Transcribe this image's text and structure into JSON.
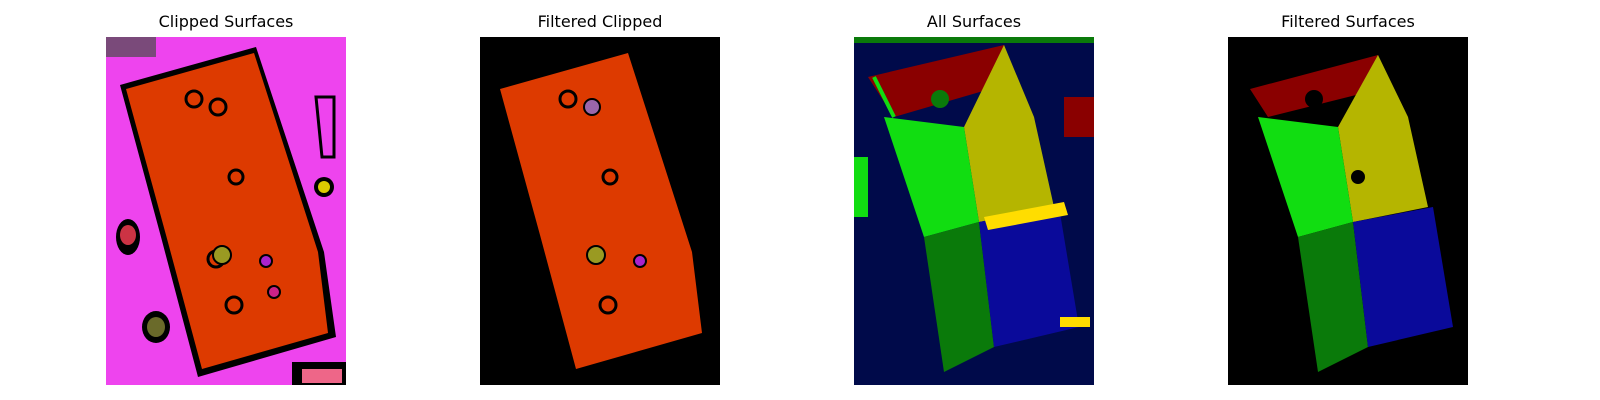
{
  "panels": [
    {
      "title": "Clipped Surfaces",
      "image": "segmentation-clipped-surfaces"
    },
    {
      "title": "Filtered Clipped",
      "image": "segmentation-filtered-clipped"
    },
    {
      "title": "All Surfaces",
      "image": "segmentation-all-surfaces"
    },
    {
      "title": "Filtered Surfaces",
      "image": "segmentation-filtered-surfaces"
    }
  ],
  "colors": {
    "magenta": "#ee44ee",
    "orange_red": "#dd3a00",
    "black": "#000000",
    "navy": "#000a4a",
    "dark_red": "#8a0000",
    "olive_yellow": "#b5b500",
    "bright_green": "#11dd11",
    "dark_green": "#0a7a0a",
    "blue": "#0a0a9a",
    "yellow": "#ffdd00"
  }
}
